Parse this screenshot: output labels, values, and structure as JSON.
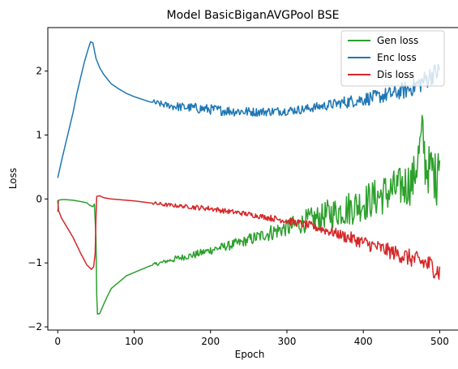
{
  "chart_data": {
    "type": "line",
    "title": "Model BasicBiganAVGPool BSE",
    "xlabel": "Epoch",
    "ylabel": "Loss",
    "xlim": [
      -13,
      525
    ],
    "ylim": [
      -2.05,
      2.68
    ],
    "xticks": [
      0,
      100,
      200,
      300,
      400,
      500
    ],
    "yticks": [
      -2,
      -1,
      0,
      1,
      2
    ],
    "grid": false,
    "legend_position": "top-right",
    "series": [
      {
        "name": "Gen loss",
        "color": "#2ca02c",
        "noise": [
          0,
          0,
          0,
          0,
          0,
          0.03,
          0.05,
          0.06,
          0.07,
          0.08,
          0.1,
          0.13,
          0.16,
          0.2,
          0.24,
          0.28,
          0.3,
          0.32,
          0.36,
          0.4,
          0.46
        ],
        "points": [
          [
            0,
            -0.2
          ],
          [
            1,
            -0.02
          ],
          [
            5,
            -0.01
          ],
          [
            10,
            -0.01
          ],
          [
            20,
            -0.02
          ],
          [
            30,
            -0.04
          ],
          [
            38,
            -0.06
          ],
          [
            42,
            -0.1
          ],
          [
            46,
            -0.12
          ],
          [
            48,
            -0.08
          ],
          [
            50,
            -0.6
          ],
          [
            51,
            -1.5
          ],
          [
            52,
            -1.8
          ],
          [
            55,
            -1.79
          ],
          [
            60,
            -1.65
          ],
          [
            65,
            -1.52
          ],
          [
            70,
            -1.4
          ],
          [
            80,
            -1.3
          ],
          [
            90,
            -1.2
          ],
          [
            100,
            -1.15
          ],
          [
            120,
            -1.05
          ],
          [
            140,
            -0.98
          ],
          [
            160,
            -0.92
          ],
          [
            180,
            -0.87
          ],
          [
            200,
            -0.8
          ],
          [
            220,
            -0.74
          ],
          [
            240,
            -0.68
          ],
          [
            260,
            -0.6
          ],
          [
            280,
            -0.52
          ],
          [
            300,
            -0.45
          ],
          [
            320,
            -0.38
          ],
          [
            340,
            -0.3
          ],
          [
            360,
            -0.22
          ],
          [
            380,
            -0.15
          ],
          [
            400,
            -0.06
          ],
          [
            420,
            0.04
          ],
          [
            440,
            0.14
          ],
          [
            455,
            0.22
          ],
          [
            465,
            0.28
          ],
          [
            470,
            0.55
          ],
          [
            475,
            0.85
          ],
          [
            478,
            1.02
          ],
          [
            481,
            0.55
          ],
          [
            486,
            0.45
          ],
          [
            490,
            0.48
          ],
          [
            494,
            0.35
          ],
          [
            496,
            0.3
          ],
          [
            498,
            0.8
          ],
          [
            500,
            0.72
          ]
        ]
      },
      {
        "name": "Enc loss",
        "color": "#1f77b4",
        "noise": [
          0,
          0,
          0,
          0,
          0,
          0.05,
          0.07,
          0.08,
          0.08,
          0.08,
          0.07,
          0.07,
          0.07,
          0.07,
          0.08,
          0.1,
          0.11,
          0.12,
          0.14,
          0.16,
          0.18
        ],
        "points": [
          [
            0,
            0.33
          ],
          [
            5,
            0.6
          ],
          [
            10,
            0.85
          ],
          [
            15,
            1.1
          ],
          [
            20,
            1.35
          ],
          [
            25,
            1.65
          ],
          [
            30,
            1.9
          ],
          [
            35,
            2.15
          ],
          [
            40,
            2.35
          ],
          [
            43,
            2.46
          ],
          [
            46,
            2.44
          ],
          [
            50,
            2.2
          ],
          [
            55,
            2.05
          ],
          [
            60,
            1.95
          ],
          [
            70,
            1.8
          ],
          [
            80,
            1.72
          ],
          [
            90,
            1.65
          ],
          [
            100,
            1.6
          ],
          [
            120,
            1.52
          ],
          [
            140,
            1.47
          ],
          [
            160,
            1.44
          ],
          [
            180,
            1.42
          ],
          [
            200,
            1.4
          ],
          [
            220,
            1.38
          ],
          [
            240,
            1.37
          ],
          [
            260,
            1.36
          ],
          [
            280,
            1.37
          ],
          [
            300,
            1.38
          ],
          [
            320,
            1.4
          ],
          [
            340,
            1.44
          ],
          [
            360,
            1.48
          ],
          [
            380,
            1.52
          ],
          [
            400,
            1.56
          ],
          [
            420,
            1.6
          ],
          [
            440,
            1.65
          ],
          [
            460,
            1.72
          ],
          [
            480,
            1.85
          ],
          [
            490,
            1.95
          ],
          [
            500,
            2.0
          ]
        ]
      },
      {
        "name": "Dis loss",
        "color": "#d62728",
        "noise": [
          0,
          0,
          0,
          0,
          0,
          0.03,
          0.03,
          0.04,
          0.04,
          0.04,
          0.04,
          0.05,
          0.06,
          0.07,
          0.08,
          0.1,
          0.11,
          0.12,
          0.14,
          0.16,
          0.19
        ],
        "points": [
          [
            0,
            -0.02
          ],
          [
            1,
            -0.18
          ],
          [
            5,
            -0.3
          ],
          [
            10,
            -0.4
          ],
          [
            20,
            -0.6
          ],
          [
            30,
            -0.85
          ],
          [
            38,
            -1.03
          ],
          [
            44,
            -1.1
          ],
          [
            47,
            -1.06
          ],
          [
            49,
            -0.85
          ],
          [
            50,
            -0.3
          ],
          [
            51,
            0.04
          ],
          [
            55,
            0.05
          ],
          [
            60,
            0.02
          ],
          [
            70,
            0.0
          ],
          [
            80,
            -0.01
          ],
          [
            100,
            -0.03
          ],
          [
            120,
            -0.06
          ],
          [
            140,
            -0.09
          ],
          [
            160,
            -0.11
          ],
          [
            180,
            -0.13
          ],
          [
            200,
            -0.15
          ],
          [
            220,
            -0.19
          ],
          [
            240,
            -0.22
          ],
          [
            260,
            -0.26
          ],
          [
            280,
            -0.3
          ],
          [
            300,
            -0.34
          ],
          [
            320,
            -0.39
          ],
          [
            340,
            -0.45
          ],
          [
            360,
            -0.52
          ],
          [
            380,
            -0.6
          ],
          [
            400,
            -0.68
          ],
          [
            420,
            -0.76
          ],
          [
            440,
            -0.84
          ],
          [
            460,
            -0.92
          ],
          [
            480,
            -1.0
          ],
          [
            490,
            -1.05
          ],
          [
            500,
            -1.15
          ]
        ]
      }
    ]
  }
}
